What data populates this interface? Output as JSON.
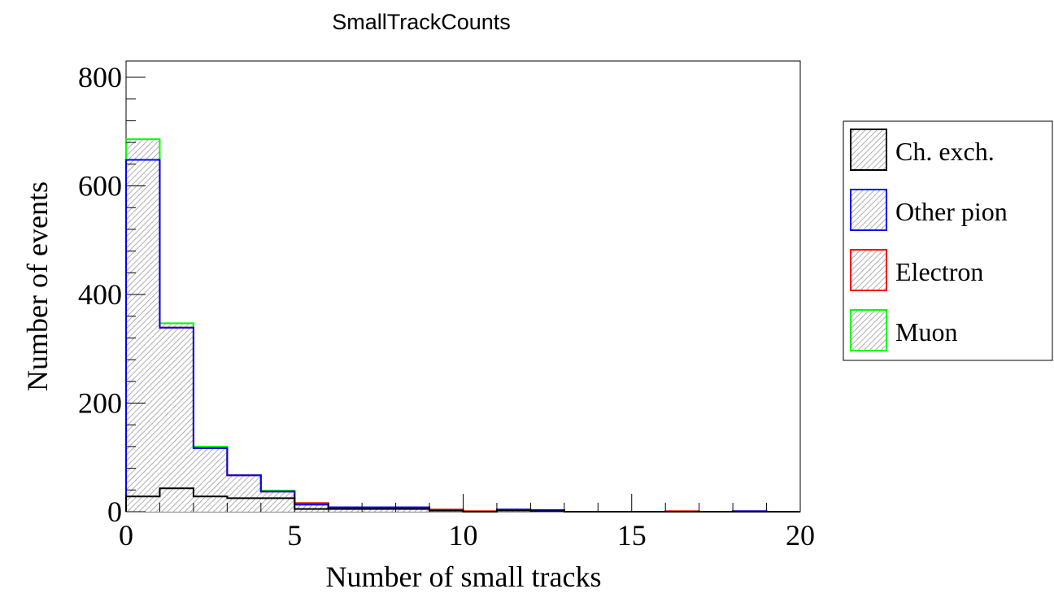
{
  "chart_data": {
    "type": "bar",
    "title": "SmallTrackCounts",
    "xlabel": "Number of small tracks",
    "ylabel": "Number of events",
    "xlim": [
      0,
      20
    ],
    "ylim": [
      0,
      830
    ],
    "x_ticks": [
      0,
      5,
      10,
      15,
      20
    ],
    "y_ticks": [
      0,
      200,
      400,
      600,
      800
    ],
    "stacked": true,
    "bin_edges": [
      0,
      1,
      2,
      3,
      4,
      5,
      6,
      7,
      8,
      9,
      10,
      11,
      12,
      13,
      14,
      15,
      16,
      17,
      18,
      19,
      20
    ],
    "legend_position": "right",
    "series": [
      {
        "name": "Ch. exch.",
        "color": "#000000",
        "values": [
          28,
          43,
          28,
          25,
          25,
          5,
          5,
          5,
          5,
          2,
          0,
          2,
          1,
          0,
          0,
          0,
          0,
          0,
          0,
          0
        ]
      },
      {
        "name": "Other pion",
        "color": "#0000ff",
        "values": [
          620,
          296,
          89,
          42,
          12,
          8,
          3,
          3,
          3,
          0,
          0,
          2,
          2,
          0,
          0,
          0,
          0,
          0,
          1,
          0
        ]
      },
      {
        "name": "Electron",
        "color": "#ff0000",
        "values": [
          0,
          0,
          0,
          0,
          0,
          3,
          0,
          0,
          0,
          2,
          1,
          0,
          0,
          0,
          0,
          0,
          1,
          0,
          0,
          0
        ]
      },
      {
        "name": "Muon",
        "color": "#00ff00",
        "values": [
          38,
          8,
          3,
          0,
          2,
          0,
          0,
          0,
          0,
          0,
          0,
          0,
          0,
          0,
          0,
          0,
          0,
          0,
          0,
          0
        ]
      }
    ]
  }
}
